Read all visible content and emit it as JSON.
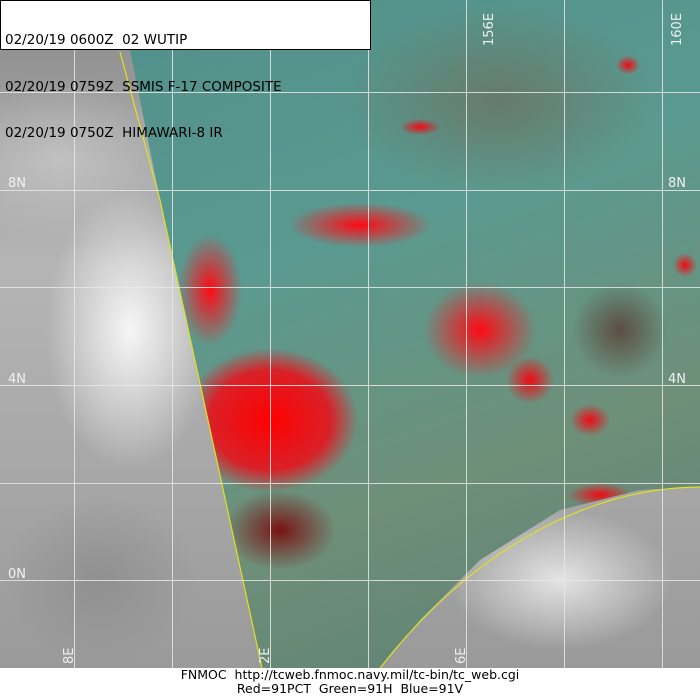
{
  "header": {
    "lines": [
      {
        "date": "02/20/19",
        "time": "0600Z",
        "text": "02 WUTIP"
      },
      {
        "date": "02/20/19",
        "time": "0759Z",
        "text": "SSMIS F-17 COMPOSITE"
      },
      {
        "date": "02/20/19",
        "time": "0750Z",
        "text": "HIMAWARI-8 IR"
      }
    ]
  },
  "map": {
    "lat_labels": [
      "8N",
      "4N",
      "0N"
    ],
    "lon_labels": [
      "8E",
      "2E",
      "6E",
      "156E",
      "160E"
    ],
    "colors": {
      "convection": "#ff1020",
      "background": "#5b9a90",
      "swath_edge": "#e0e020",
      "grid": "#e8e8e8"
    }
  },
  "footer": {
    "line1": "FNMOC  http://tcweb.fnmoc.navy.mil/tc-bin/tc_web.cgi",
    "line2": "Red=91PCT  Green=91H  Blue=91V"
  }
}
